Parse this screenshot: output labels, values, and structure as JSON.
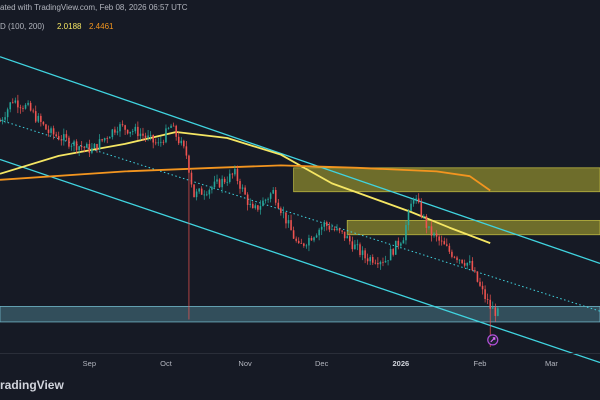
{
  "header": {
    "published_line": "ated with TradingView.com, Feb 08, 2026 06:57 UTC",
    "ma_label": "D (100, 200)",
    "ma_value_fast": "2.0188",
    "ma_value_slow": "2.4461"
  },
  "branding": {
    "logo_text": "radingView"
  },
  "colors": {
    "background": "#161a25",
    "up_candle": "#26a69a",
    "down_candle": "#ef5350",
    "channel": "#40d4e0",
    "ma_fast": "#f5e663",
    "ma_slow": "#f3951f",
    "supply_zone": "#8c8a2e",
    "demand_zone": "#4a7a88"
  },
  "icons": {
    "event_marker": "rocket-icon",
    "logo_mark": "tradingview-logo-icon"
  },
  "chart_data": {
    "type": "candlestick",
    "title": "",
    "timeframe": "1D",
    "x_range": [
      "2025-07-28",
      "2026-03-20"
    ],
    "y_range": [
      1.1,
      3.72
    ],
    "x_ticks": [
      {
        "label": "Sep",
        "date": "2025-09-01",
        "bold": false
      },
      {
        "label": "Oct",
        "date": "2025-10-01",
        "bold": false
      },
      {
        "label": "Nov",
        "date": "2025-11-01",
        "bold": false
      },
      {
        "label": "Dec",
        "date": "2025-12-01",
        "bold": false
      },
      {
        "label": "2026",
        "date": "2026-01-01",
        "bold": true
      },
      {
        "label": "Feb",
        "date": "2026-02-01",
        "bold": false
      },
      {
        "label": "Mar",
        "date": "2026-03-01",
        "bold": false
      }
    ],
    "anchors": [
      {
        "date": "2025-07-28",
        "price": 3.04
      },
      {
        "date": "2025-08-02",
        "price": 3.22
      },
      {
        "date": "2025-08-08",
        "price": 3.15
      },
      {
        "date": "2025-08-16",
        "price": 2.95
      },
      {
        "date": "2025-08-26",
        "price": 2.85
      },
      {
        "date": "2025-09-02",
        "price": 2.8
      },
      {
        "date": "2025-09-12",
        "price": 3.0
      },
      {
        "date": "2025-09-20",
        "price": 2.95
      },
      {
        "date": "2025-09-28",
        "price": 2.84
      },
      {
        "date": "2025-10-03",
        "price": 3.0
      },
      {
        "date": "2025-10-09",
        "price": 2.76
      },
      {
        "date": "2025-10-12",
        "price": 2.42
      },
      {
        "date": "2025-10-20",
        "price": 2.5
      },
      {
        "date": "2025-10-28",
        "price": 2.6
      },
      {
        "date": "2025-11-04",
        "price": 2.28
      },
      {
        "date": "2025-11-12",
        "price": 2.45
      },
      {
        "date": "2025-11-22",
        "price": 1.98
      },
      {
        "date": "2025-12-02",
        "price": 2.18
      },
      {
        "date": "2025-12-10",
        "price": 2.08
      },
      {
        "date": "2025-12-18",
        "price": 1.9
      },
      {
        "date": "2025-12-26",
        "price": 1.88
      },
      {
        "date": "2026-01-02",
        "price": 2.08
      },
      {
        "date": "2026-01-06",
        "price": 2.42
      },
      {
        "date": "2026-01-12",
        "price": 2.12
      },
      {
        "date": "2026-01-20",
        "price": 1.95
      },
      {
        "date": "2026-01-28",
        "price": 1.84
      },
      {
        "date": "2026-02-01",
        "price": 1.65
      },
      {
        "date": "2026-02-05",
        "price": 1.48
      },
      {
        "date": "2026-02-08",
        "price": 1.43
      }
    ],
    "long_wicks": [
      {
        "date": "2025-10-10",
        "low": 1.38
      },
      {
        "date": "2026-02-05",
        "low": 1.15
      }
    ],
    "moving_averages": [
      {
        "name": "MA 100",
        "points": [
          {
            "date": "2025-07-28",
            "price": 2.6
          },
          {
            "date": "2025-08-20",
            "price": 2.75
          },
          {
            "date": "2025-09-15",
            "price": 2.85
          },
          {
            "date": "2025-10-05",
            "price": 2.95
          },
          {
            "date": "2025-10-25",
            "price": 2.9
          },
          {
            "date": "2025-11-15",
            "price": 2.76
          },
          {
            "date": "2025-12-05",
            "price": 2.52
          },
          {
            "date": "2026-01-05",
            "price": 2.28
          },
          {
            "date": "2026-01-20",
            "price": 2.15
          },
          {
            "date": "2026-02-05",
            "price": 2.02
          }
        ]
      },
      {
        "name": "MA 200",
        "points": [
          {
            "date": "2025-07-28",
            "price": 2.55
          },
          {
            "date": "2025-09-15",
            "price": 2.62
          },
          {
            "date": "2025-10-20",
            "price": 2.65
          },
          {
            "date": "2025-11-15",
            "price": 2.67
          },
          {
            "date": "2025-12-15",
            "price": 2.65
          },
          {
            "date": "2026-01-15",
            "price": 2.62
          },
          {
            "date": "2026-01-28",
            "price": 2.58
          },
          {
            "date": "2026-02-05",
            "price": 2.46
          }
        ]
      }
    ],
    "channel": {
      "upper": [
        {
          "date": "2025-07-28",
          "price": 3.58
        },
        {
          "date": "2026-03-20",
          "price": 1.85
        }
      ],
      "mid": [
        {
          "date": "2025-07-28",
          "price": 3.05
        },
        {
          "date": "2026-03-20",
          "price": 1.45
        }
      ],
      "lower": [
        {
          "date": "2025-07-28",
          "price": 2.72
        },
        {
          "date": "2026-03-20",
          "price": 1.02
        }
      ]
    },
    "zones": [
      {
        "name": "supply-zone-upper",
        "from": "2025-11-20",
        "to": "2026-03-20",
        "top": 2.65,
        "bottom": 2.45,
        "kind": "supply"
      },
      {
        "name": "supply-zone-lower",
        "from": "2025-12-11",
        "to": "2026-03-20",
        "top": 2.21,
        "bottom": 2.09,
        "kind": "supply"
      },
      {
        "name": "demand-zone",
        "from": "2025-07-28",
        "to": "2026-03-20",
        "top": 1.49,
        "bottom": 1.36,
        "kind": "demand"
      }
    ],
    "event_marker": {
      "date": "2026-02-06",
      "price": 1.21
    }
  }
}
